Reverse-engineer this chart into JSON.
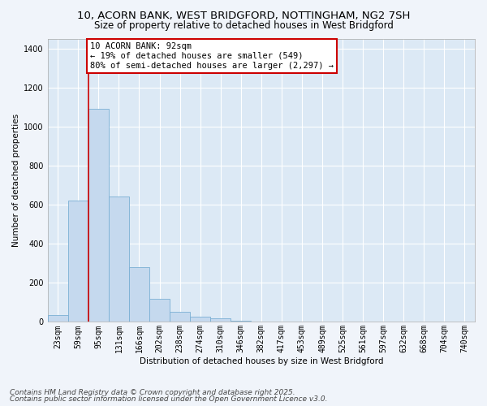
{
  "title1": "10, ACORN BANK, WEST BRIDGFORD, NOTTINGHAM, NG2 7SH",
  "title2": "Size of property relative to detached houses in West Bridgford",
  "xlabel": "Distribution of detached houses by size in West Bridgford",
  "ylabel": "Number of detached properties",
  "bar_color": "#c5d9ee",
  "bar_edge_color": "#7aafd4",
  "annotation_box_color": "#ffffff",
  "annotation_border_color": "#cc0000",
  "vline_color": "#cc0000",
  "background_color": "#dce9f5",
  "grid_color": "#ffffff",
  "fig_background": "#f0f4fa",
  "categories": [
    "23sqm",
    "59sqm",
    "95sqm",
    "131sqm",
    "166sqm",
    "202sqm",
    "238sqm",
    "274sqm",
    "310sqm",
    "346sqm",
    "382sqm",
    "417sqm",
    "453sqm",
    "489sqm",
    "525sqm",
    "561sqm",
    "597sqm",
    "632sqm",
    "668sqm",
    "704sqm",
    "740sqm"
  ],
  "values": [
    35,
    620,
    1090,
    640,
    280,
    120,
    50,
    25,
    20,
    5,
    0,
    0,
    0,
    0,
    0,
    0,
    0,
    0,
    0,
    0,
    0
  ],
  "ylim": [
    0,
    1450
  ],
  "yticks": [
    0,
    200,
    400,
    600,
    800,
    1000,
    1200,
    1400
  ],
  "vline_x": 1.5,
  "annotation_line1": "10 ACORN BANK: 92sqm",
  "annotation_line2": "← 19% of detached houses are smaller (549)",
  "annotation_line3": "80% of semi-detached houses are larger (2,297) →",
  "footer1": "Contains HM Land Registry data © Crown copyright and database right 2025.",
  "footer2": "Contains public sector information licensed under the Open Government Licence v3.0.",
  "title_fontsize": 9.5,
  "subtitle_fontsize": 8.5,
  "axis_label_fontsize": 7.5,
  "tick_fontsize": 7,
  "annotation_fontsize": 7.5,
  "footer_fontsize": 6.5
}
